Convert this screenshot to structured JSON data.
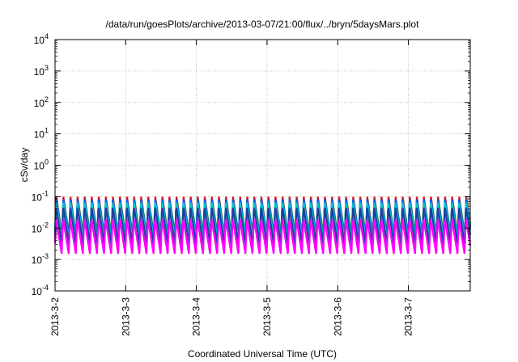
{
  "chart_data": {
    "type": "line",
    "title": "/data/run/goesPlots/archive/2013-03-07/21:00/flux/../bryn/5daysMars.plot",
    "xlabel": "Coordinated Universal Time (UTC)",
    "ylabel": "cSv/day",
    "yscale": "log",
    "ylim": [
      0.0001,
      10000
    ],
    "xlim": [
      "2013-03-02",
      "2013-03-07T21:00"
    ],
    "grid": true,
    "y_ticks": [
      {
        "base": "10",
        "exp": "-4"
      },
      {
        "base": "10",
        "exp": "-3"
      },
      {
        "base": "10",
        "exp": "-2"
      },
      {
        "base": "10",
        "exp": "-1"
      },
      {
        "base": "10",
        "exp": "0"
      },
      {
        "base": "10",
        "exp": "1"
      },
      {
        "base": "10",
        "exp": "2"
      },
      {
        "base": "10",
        "exp": "3"
      },
      {
        "base": "10",
        "exp": "4"
      }
    ],
    "x_ticks": [
      "2013-3-2",
      "2013-3-3",
      "2013-3-4",
      "2013-3-5",
      "2013-3-6",
      "2013-3-7"
    ],
    "oscillation_period_days": 0.1,
    "series": [
      {
        "color": "#00c000",
        "peak": 0.09,
        "trough": 0.006
      },
      {
        "color": "#e01010",
        "peak": 0.1,
        "trough": 0.004
      },
      {
        "color": "#0060ff",
        "peak": 0.085,
        "trough": 0.005
      },
      {
        "color": "#00c8c8",
        "peak": 0.07,
        "trough": 0.004
      },
      {
        "color": "#2040a0",
        "peak": 0.05,
        "trough": 0.003
      },
      {
        "color": "#ff00ff",
        "peak": 0.02,
        "trough": 0.0015
      }
    ]
  }
}
